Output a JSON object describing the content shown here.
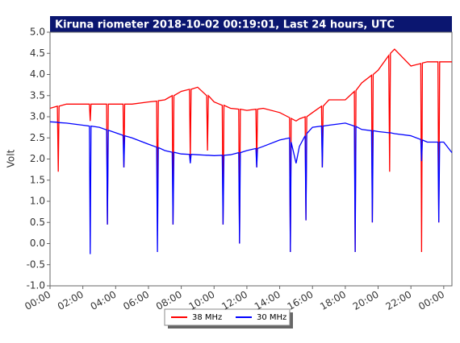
{
  "chart_data": {
    "type": "line",
    "title": "Kiruna riometer 2018-10-02 00:19:01, Last 24 hours, UTC",
    "y_label": "Volt",
    "x": [
      0,
      0.45,
      0.5,
      0.55,
      1,
      2,
      2.4,
      2.45,
      2.5,
      3,
      3.45,
      3.5,
      3.55,
      4,
      4.45,
      4.5,
      4.55,
      5,
      6,
      6.5,
      6.55,
      6.6,
      7,
      7.45,
      7.5,
      7.55,
      8,
      8.5,
      8.55,
      8.6,
      9,
      9.55,
      9.6,
      9.65,
      10,
      10.5,
      10.55,
      10.6,
      11,
      11.5,
      11.55,
      11.6,
      12,
      12.55,
      12.6,
      12.65,
      13,
      14,
      14.6,
      14.65,
      14.7,
      15,
      15.2,
      15.55,
      15.6,
      15.65,
      16,
      16.55,
      16.6,
      16.65,
      17,
      18,
      18.55,
      18.6,
      18.65,
      19,
      19.6,
      19.65,
      19.7,
      20,
      20.65,
      20.7,
      20.75,
      21,
      22,
      22.6,
      22.65,
      22.7,
      23,
      23.65,
      23.7,
      23.75,
      24,
      24.5
    ],
    "series": [
      {
        "name": "38 MHz",
        "color": "#ff0000",
        "values": [
          3.2,
          3.25,
          1.7,
          3.25,
          3.3,
          3.3,
          3.3,
          2.9,
          3.3,
          3.3,
          3.3,
          0.45,
          3.3,
          3.3,
          3.3,
          1.8,
          3.3,
          3.3,
          3.35,
          3.37,
          0.5,
          3.38,
          3.4,
          3.5,
          0.45,
          3.5,
          3.6,
          3.65,
          2.0,
          3.65,
          3.7,
          3.5,
          2.2,
          3.5,
          3.35,
          3.27,
          0.45,
          3.27,
          3.2,
          3.18,
          0.0,
          3.18,
          3.15,
          3.18,
          1.8,
          3.18,
          3.2,
          3.1,
          2.98,
          -0.2,
          2.96,
          2.9,
          2.95,
          3.0,
          0.55,
          3.0,
          3.1,
          3.25,
          1.8,
          3.25,
          3.4,
          3.4,
          3.6,
          -0.2,
          3.62,
          3.8,
          3.98,
          0.5,
          4.0,
          4.1,
          4.45,
          1.7,
          4.5,
          4.6,
          4.2,
          4.26,
          -0.2,
          4.27,
          4.3,
          4.3,
          0.5,
          4.3,
          4.3,
          4.3
        ]
      },
      {
        "name": "30 MHz",
        "color": "#0000ff",
        "values": [
          2.88,
          2.87,
          2.86,
          2.86,
          2.85,
          2.8,
          2.78,
          -0.25,
          2.78,
          2.75,
          2.69,
          0.45,
          2.68,
          2.62,
          2.56,
          1.8,
          2.55,
          2.5,
          2.35,
          2.28,
          -0.2,
          2.27,
          2.2,
          2.16,
          0.45,
          2.16,
          2.12,
          2.11,
          1.9,
          2.11,
          2.1,
          2.09,
          2.09,
          2.09,
          2.08,
          2.09,
          0.45,
          2.09,
          2.1,
          2.15,
          0.0,
          2.15,
          2.2,
          2.25,
          1.8,
          2.25,
          2.3,
          2.45,
          2.5,
          -0.2,
          2.4,
          1.9,
          2.3,
          2.55,
          0.55,
          2.6,
          2.75,
          2.78,
          1.8,
          2.78,
          2.8,
          2.85,
          2.78,
          -0.2,
          2.77,
          2.7,
          2.67,
          0.5,
          2.67,
          2.65,
          2.62,
          2.62,
          2.62,
          2.6,
          2.55,
          2.46,
          1.95,
          2.45,
          2.4,
          2.4,
          0.5,
          2.4,
          2.4,
          2.15
        ]
      }
    ],
    "xlim": [
      0,
      24.5
    ],
    "xticks": [
      {
        "value": 0,
        "label": "00:00"
      },
      {
        "value": 2,
        "label": "02:00"
      },
      {
        "value": 4,
        "label": "04:00"
      },
      {
        "value": 6,
        "label": "06:00"
      },
      {
        "value": 8,
        "label": "08:00"
      },
      {
        "value": 10,
        "label": "10:00"
      },
      {
        "value": 12,
        "label": "12:00"
      },
      {
        "value": 14,
        "label": "14:00"
      },
      {
        "value": 16,
        "label": "16:00"
      },
      {
        "value": 18,
        "label": "18:00"
      },
      {
        "value": 20,
        "label": "20:00"
      },
      {
        "value": 22,
        "label": "22:00"
      },
      {
        "value": 24,
        "label": "00:00"
      }
    ],
    "ylim": [
      -1,
      5
    ],
    "yticks": [
      {
        "value": -1,
        "label": "-1.0"
      },
      -0.5,
      {
        "value": 0,
        "label": "0.0"
      },
      0.5,
      {
        "value": 1,
        "label": "1.0"
      },
      1.5,
      {
        "value": 2,
        "label": "2.0"
      },
      2.5,
      {
        "value": 3,
        "label": "3.0"
      },
      3.5,
      {
        "value": 4,
        "label": "4.0"
      },
      4.5,
      {
        "value": 5,
        "label": "5.0"
      }
    ],
    "grid": false
  }
}
